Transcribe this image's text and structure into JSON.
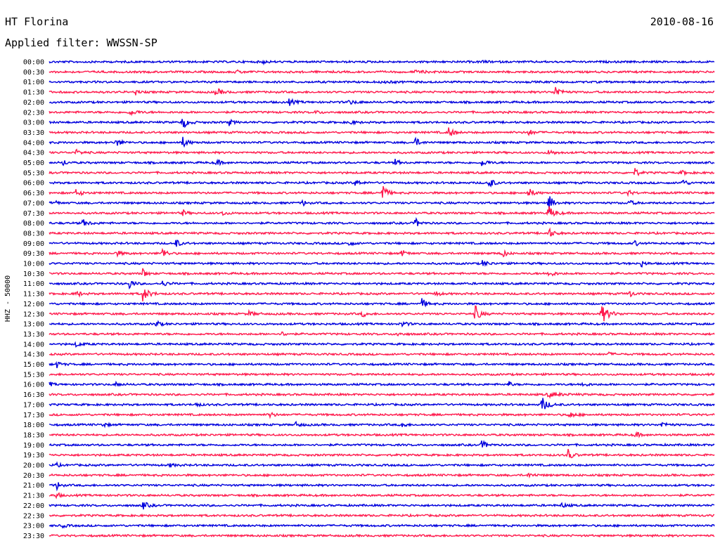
{
  "header": {
    "station": "HT Florina",
    "date": "2010-08-16",
    "filter": "Applied filter: WWSSN-SP"
  },
  "chart_data": {
    "type": "line",
    "title": "HT Florina",
    "ylabel": "HHZ - 50000",
    "colors": [
      "#0000dd",
      "#ff1a4d"
    ],
    "rows": [
      {
        "label": "00:00",
        "events": [
          [
            0.32,
            0.8,
            4
          ],
          [
            0.65,
            0.5,
            6
          ]
        ]
      },
      {
        "label": "00:30",
        "events": [
          [
            0.28,
            0.6,
            8
          ],
          [
            0.55,
            0.5,
            10
          ]
        ]
      },
      {
        "label": "01:00",
        "events": [
          [
            0.5,
            0.5,
            10
          ]
        ]
      },
      {
        "label": "01:30",
        "events": [
          [
            0.13,
            1.6,
            2
          ],
          [
            0.25,
            2.2,
            5
          ],
          [
            0.76,
            3.4,
            5
          ]
        ]
      },
      {
        "label": "02:00",
        "events": [
          [
            0.36,
            1.4,
            6
          ],
          [
            0.45,
            0.8,
            8
          ]
        ]
      },
      {
        "label": "02:30",
        "events": [
          [
            0.12,
            1.2,
            8
          ],
          [
            0.4,
            0.6,
            6
          ]
        ]
      },
      {
        "label": "03:00",
        "events": [
          [
            0.2,
            3.0,
            5
          ],
          [
            0.27,
            1.5,
            4
          ],
          [
            0.45,
            1.0,
            6
          ]
        ]
      },
      {
        "label": "03:30",
        "events": [
          [
            0.6,
            3.2,
            4
          ],
          [
            0.72,
            1.5,
            5
          ]
        ]
      },
      {
        "label": "04:00",
        "events": [
          [
            0.1,
            2.0,
            5
          ],
          [
            0.2,
            2.5,
            5
          ],
          [
            0.55,
            2.4,
            4
          ]
        ]
      },
      {
        "label": "04:30",
        "events": [
          [
            0.04,
            1.2,
            5
          ],
          [
            0.75,
            1.2,
            6
          ]
        ]
      },
      {
        "label": "05:00",
        "events": [
          [
            0.02,
            2.0,
            3
          ],
          [
            0.25,
            2.0,
            4
          ],
          [
            0.52,
            1.4,
            4
          ],
          [
            0.65,
            1.4,
            6
          ]
        ]
      },
      {
        "label": "05:30",
        "events": [
          [
            0.88,
            3.0,
            3
          ],
          [
            0.95,
            1.0,
            5
          ]
        ]
      },
      {
        "label": "06:00",
        "events": [
          [
            0.46,
            1.5,
            5
          ],
          [
            0.66,
            4.0,
            4
          ],
          [
            0.95,
            2.0,
            5
          ]
        ]
      },
      {
        "label": "06:30",
        "events": [
          [
            0.04,
            1.4,
            6
          ],
          [
            0.5,
            5.5,
            4
          ],
          [
            0.72,
            2.2,
            5
          ],
          [
            0.87,
            1.2,
            4
          ]
        ]
      },
      {
        "label": "07:00",
        "events": [
          [
            0.01,
            1.6,
            2
          ],
          [
            0.38,
            2.0,
            3
          ],
          [
            0.75,
            5.0,
            4
          ],
          [
            0.87,
            1.4,
            5
          ]
        ]
      },
      {
        "label": "07:30",
        "events": [
          [
            0.2,
            2.0,
            3
          ],
          [
            0.26,
            1.2,
            4
          ],
          [
            0.75,
            3.2,
            6
          ]
        ]
      },
      {
        "label": "08:00",
        "events": [
          [
            0.05,
            1.5,
            6
          ],
          [
            0.55,
            2.4,
            4
          ]
        ]
      },
      {
        "label": "08:30",
        "events": [
          [
            0.75,
            2.4,
            5
          ]
        ]
      },
      {
        "label": "09:00",
        "events": [
          [
            0.19,
            2.2,
            4
          ],
          [
            0.45,
            1.0,
            5
          ],
          [
            0.88,
            1.2,
            4
          ]
        ]
      },
      {
        "label": "09:30",
        "events": [
          [
            0.1,
            1.2,
            6
          ],
          [
            0.17,
            2.8,
            4
          ],
          [
            0.53,
            1.8,
            4
          ],
          [
            0.68,
            2.5,
            4
          ]
        ]
      },
      {
        "label": "10:00",
        "events": [
          [
            0.65,
            1.4,
            6
          ],
          [
            0.89,
            1.4,
            4
          ]
        ]
      },
      {
        "label": "10:30",
        "events": [
          [
            0.14,
            3.0,
            3
          ],
          [
            0.75,
            1.4,
            6
          ]
        ]
      },
      {
        "label": "11:00",
        "events": [
          [
            0.12,
            2.4,
            4
          ],
          [
            0.17,
            1.2,
            5
          ]
        ]
      },
      {
        "label": "11:30",
        "events": [
          [
            0.04,
            2.0,
            4
          ],
          [
            0.14,
            3.5,
            6
          ],
          [
            0.58,
            1.5,
            4
          ],
          [
            0.87,
            2.2,
            4
          ]
        ]
      },
      {
        "label": "12:00",
        "events": [
          [
            0.56,
            2.6,
            4
          ]
        ]
      },
      {
        "label": "12:30",
        "events": [
          [
            0.47,
            1.6,
            4
          ],
          [
            0.64,
            4.0,
            5
          ],
          [
            0.83,
            4.5,
            7
          ],
          [
            0.3,
            1.0,
            6
          ]
        ]
      },
      {
        "label": "13:00",
        "events": [
          [
            0.16,
            1.8,
            4
          ],
          [
            0.53,
            1.2,
            5
          ]
        ]
      },
      {
        "label": "13:30",
        "events": [
          [
            0.35,
            1.0,
            4
          ],
          [
            0.52,
            1.0,
            6
          ]
        ]
      },
      {
        "label": "14:00",
        "events": [
          [
            0.04,
            1.2,
            5
          ]
        ]
      },
      {
        "label": "14:30",
        "events": [
          [
            0.84,
            0.8,
            4
          ]
        ]
      },
      {
        "label": "15:00",
        "events": [
          [
            0.01,
            1.8,
            4
          ]
        ]
      },
      {
        "label": "15:30",
        "events": []
      },
      {
        "label": "16:00",
        "events": [
          [
            0.0,
            1.2,
            3
          ],
          [
            0.1,
            0.8,
            5
          ],
          [
            0.69,
            2.8,
            2
          ],
          [
            0.8,
            1.2,
            5
          ]
        ]
      },
      {
        "label": "16:30",
        "events": [
          [
            0.75,
            1.0,
            12
          ]
        ]
      },
      {
        "label": "17:00",
        "events": [
          [
            0.22,
            1.0,
            4
          ],
          [
            0.74,
            3.6,
            6
          ]
        ]
      },
      {
        "label": "17:30",
        "events": [
          [
            0.33,
            1.8,
            4
          ],
          [
            0.78,
            1.6,
            6
          ]
        ]
      },
      {
        "label": "18:00",
        "events": [
          [
            0.08,
            1.2,
            4
          ],
          [
            0.37,
            1.0,
            6
          ],
          [
            0.53,
            2.0,
            3
          ],
          [
            0.92,
            1.2,
            6
          ]
        ]
      },
      {
        "label": "18:30",
        "events": [
          [
            0.88,
            1.8,
            4
          ]
        ]
      },
      {
        "label": "19:00",
        "events": [
          [
            0.65,
            2.0,
            5
          ]
        ]
      },
      {
        "label": "19:30",
        "events": [
          [
            0.78,
            3.0,
            4
          ]
        ]
      },
      {
        "label": "20:00",
        "events": [
          [
            0.01,
            1.2,
            3
          ],
          [
            0.18,
            0.8,
            6
          ]
        ]
      },
      {
        "label": "20:30",
        "events": [
          [
            0.72,
            0.8,
            6
          ]
        ]
      },
      {
        "label": "21:00",
        "events": [
          [
            0.01,
            3.0,
            3
          ]
        ]
      },
      {
        "label": "21:30",
        "events": [
          [
            0.01,
            2.0,
            3
          ]
        ]
      },
      {
        "label": "22:00",
        "events": [
          [
            0.14,
            2.0,
            5
          ],
          [
            0.77,
            1.0,
            5
          ]
        ]
      },
      {
        "label": "22:30",
        "events": []
      },
      {
        "label": "23:00",
        "events": [
          [
            0.02,
            0.8,
            4
          ]
        ]
      },
      {
        "label": "23:30",
        "events": []
      }
    ]
  }
}
